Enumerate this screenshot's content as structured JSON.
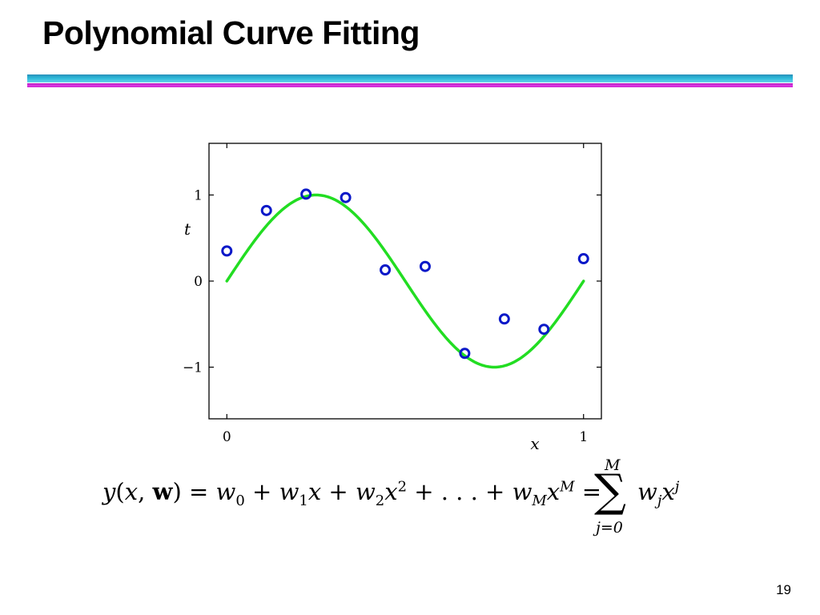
{
  "slide": {
    "title": "Polynomial Curve Fitting",
    "page_number": "19"
  },
  "colors": {
    "curve": "#22dd22",
    "points": "#0a18c8",
    "rule_blue": "#2ab9d9",
    "rule_magenta": "#c51ccc"
  },
  "equation": {
    "lhs": "y(x, w) = w0 + w1x + w2x2 + . . . + wMxM =",
    "sum_upper": "M",
    "sum_lower": "j=0",
    "term": "wjxj"
  },
  "chart_data": {
    "type": "scatter",
    "xlabel": "x",
    "ylabel": "t",
    "xlim": [
      -0.05,
      1.05
    ],
    "ylim": [
      -1.6,
      1.6
    ],
    "x_ticks": [
      0,
      1
    ],
    "x_tick_labels": [
      "0",
      "1"
    ],
    "y_ticks": [
      -1,
      0,
      1
    ],
    "y_tick_labels": [
      "−1",
      "0",
      "1"
    ],
    "grid": false,
    "curve": {
      "function": "sin(2πx)",
      "x_range": [
        0,
        1
      ]
    },
    "points": {
      "x": [
        0.0,
        0.111,
        0.222,
        0.333,
        0.444,
        0.556,
        0.667,
        0.778,
        0.889,
        1.0
      ],
      "y": [
        0.35,
        0.82,
        1.01,
        0.97,
        0.13,
        0.17,
        -0.84,
        -0.44,
        -0.56,
        0.26
      ]
    }
  }
}
